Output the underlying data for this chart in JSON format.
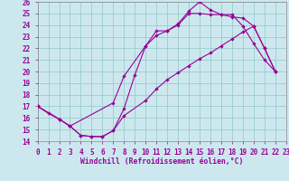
{
  "xlabel": "Windchill (Refroidissement éolien,°C)",
  "bg_color": "#cce8ee",
  "line_color": "#990099",
  "grid_color": "#99cccc",
  "xlim": [
    0,
    23
  ],
  "ylim": [
    14,
    26
  ],
  "xticks": [
    0,
    1,
    2,
    3,
    4,
    5,
    6,
    7,
    8,
    9,
    10,
    11,
    12,
    13,
    14,
    15,
    16,
    17,
    18,
    19,
    20,
    21,
    22,
    23
  ],
  "yticks": [
    14,
    15,
    16,
    17,
    18,
    19,
    20,
    21,
    22,
    23,
    24,
    25,
    26
  ],
  "curve1_x": [
    0,
    1,
    2,
    3,
    4,
    5,
    6,
    7,
    8,
    9,
    10,
    11,
    12,
    13,
    14,
    15,
    16,
    17,
    18,
    19,
    20,
    21,
    22
  ],
  "curve1_y": [
    17.0,
    16.4,
    15.9,
    15.3,
    14.5,
    14.4,
    14.4,
    14.9,
    16.8,
    19.7,
    22.2,
    23.5,
    23.5,
    24.1,
    25.2,
    26.0,
    25.3,
    24.9,
    24.9,
    23.9,
    22.4,
    21.0,
    20.0
  ],
  "curve2_x": [
    0,
    2,
    3,
    7,
    8,
    10,
    11,
    12,
    13,
    14,
    15,
    16,
    17,
    18,
    19,
    20,
    21,
    22
  ],
  "curve2_y": [
    17.0,
    15.9,
    15.3,
    17.3,
    19.6,
    22.2,
    23.1,
    23.5,
    24.0,
    25.0,
    25.0,
    24.9,
    24.9,
    24.7,
    24.6,
    23.9,
    22.0,
    20.0
  ],
  "curve3_x": [
    0,
    2,
    3,
    4,
    5,
    6,
    7,
    8,
    10,
    11,
    12,
    13,
    14,
    15,
    16,
    17,
    18,
    19,
    20,
    21,
    22
  ],
  "curve3_y": [
    17.0,
    15.9,
    15.3,
    14.5,
    14.4,
    14.4,
    14.9,
    16.2,
    17.5,
    18.5,
    19.3,
    19.9,
    20.5,
    21.1,
    21.6,
    22.2,
    22.8,
    23.4,
    23.9,
    22.0,
    20.0
  ],
  "marker_size": 2.2,
  "linewidth": 0.8,
  "tick_fontsize": 5.5,
  "xlabel_fontsize": 5.8
}
